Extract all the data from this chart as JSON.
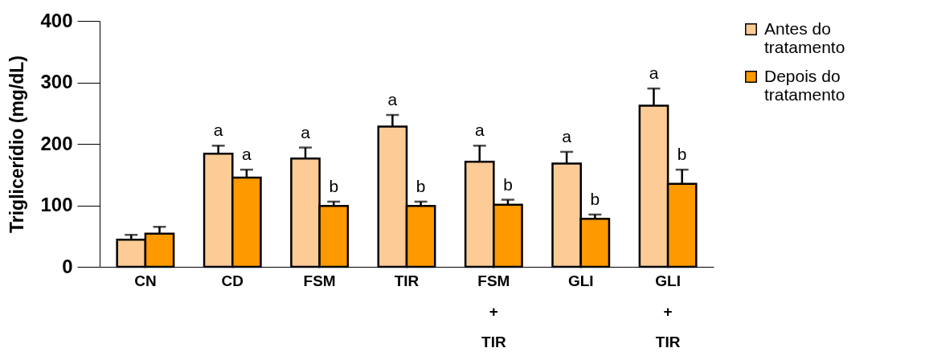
{
  "chart_data": {
    "type": "bar",
    "ylabel": "Triglicerídio (mg/dL)",
    "categories": [
      "CN",
      "CD",
      "FSM",
      "TIR",
      "FSM + TIR",
      "GLI",
      "GLI + TIR"
    ],
    "series": [
      {
        "name": "Antes do tratamento",
        "color": "#fccb96",
        "values": [
          44,
          184,
          176,
          228,
          171,
          168,
          262
        ],
        "errors": [
          8,
          13,
          18,
          19,
          26,
          19,
          28
        ]
      },
      {
        "name": "Depois do tratamento",
        "color": "#ff9900",
        "values": [
          54,
          145,
          99,
          99,
          101,
          78,
          135
        ],
        "errors": [
          11,
          13,
          7,
          7,
          8,
          7,
          23
        ]
      }
    ],
    "ylim": [
      0,
      400
    ],
    "yticks": [
      0,
      100,
      200,
      300,
      400
    ],
    "grid": false,
    "legend": "top right",
    "annotations": [
      {
        "text": "a",
        "x": "CD",
        "y": 184
      },
      {
        "text": "a",
        "x": "CD",
        "y": 145
      },
      {
        "text": "a",
        "x": "FSM",
        "y": 176
      },
      {
        "text": "b",
        "x": "FSM",
        "y": 99
      },
      {
        "text": "a",
        "x": "TIR",
        "y": 228
      },
      {
        "text": "b",
        "x": "TIR",
        "y": 99
      },
      {
        "text": "a",
        "x": "FSM + TIR",
        "y": 171
      },
      {
        "text": "b",
        "x": "FSM + TIR",
        "y": 101
      },
      {
        "text": "a",
        "x": "GLI",
        "y": 168
      },
      {
        "text": "b",
        "x": "GLI",
        "y": 78
      },
      {
        "text": "a",
        "x": "GLI + TIR",
        "y": 262
      },
      {
        "text": "b",
        "x": "GLI + TIR",
        "y": 135
      }
    ]
  }
}
